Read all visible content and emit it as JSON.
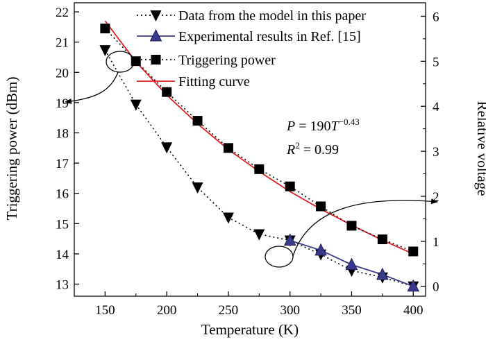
{
  "chart_data": {
    "type": "scatter",
    "xlabel": "Temperature (K)",
    "ylabel_left": "Triggering power (dBm)",
    "ylabel_right": "Relative voltage",
    "xlim": [
      125,
      410
    ],
    "ylim_left": [
      12.6,
      22.3
    ],
    "ylim_right": [
      -0.22,
      6.3
    ],
    "x_ticks": [
      150,
      200,
      250,
      300,
      350,
      400
    ],
    "y_ticks_left": [
      13,
      14,
      15,
      16,
      17,
      18,
      19,
      20,
      21,
      22
    ],
    "y_ticks_right": [
      0,
      1,
      2,
      3,
      4,
      5,
      6
    ],
    "legend_placement": "top-right",
    "equation": {
      "prefix": "P = 190",
      "var": "T",
      "exponent": "−0.43"
    },
    "r_squared": {
      "prefix": "R",
      "exponent": "2",
      "suffix": " = 0.99"
    },
    "series": [
      {
        "name": "Data from the model in this paper",
        "axis": "right",
        "marker": "triangle-down",
        "line": "dotted",
        "color": "#000000",
        "x": [
          150,
          175,
          200,
          225,
          250,
          275,
          300,
          325,
          350,
          375,
          400
        ],
        "y": [
          5.25,
          4.04,
          3.09,
          2.2,
          1.53,
          1.16,
          1.02,
          0.71,
          0.35,
          0.2,
          0.0
        ]
      },
      {
        "name": "Experimental results in Ref. [15]",
        "axis": "right",
        "marker": "triangle-up",
        "line": "solid",
        "color": "#3a3a8c",
        "x": [
          300,
          325,
          350,
          375,
          400
        ],
        "y": [
          1.02,
          0.8,
          0.48,
          0.26,
          0.0
        ]
      },
      {
        "name": "Triggering power",
        "axis": "left",
        "marker": "square",
        "line": "dotted",
        "color": "#000000",
        "x": [
          150,
          175,
          200,
          225,
          250,
          275,
          300,
          325,
          350,
          375,
          400
        ],
        "y": [
          21.45,
          20.37,
          19.35,
          18.4,
          17.5,
          16.8,
          16.23,
          15.57,
          14.93,
          14.48,
          14.08
        ]
      },
      {
        "name": "Fitting curve",
        "axis": "left",
        "marker": "none",
        "line": "solid",
        "color": "#e02020",
        "x": [
          150,
          175,
          200,
          225,
          250,
          275,
          300,
          325,
          350,
          375,
          400
        ],
        "y": [
          21.7,
          20.35,
          19.25,
          18.3,
          17.45,
          16.72,
          16.06,
          15.48,
          14.95,
          14.45,
          14.0
        ]
      }
    ]
  }
}
